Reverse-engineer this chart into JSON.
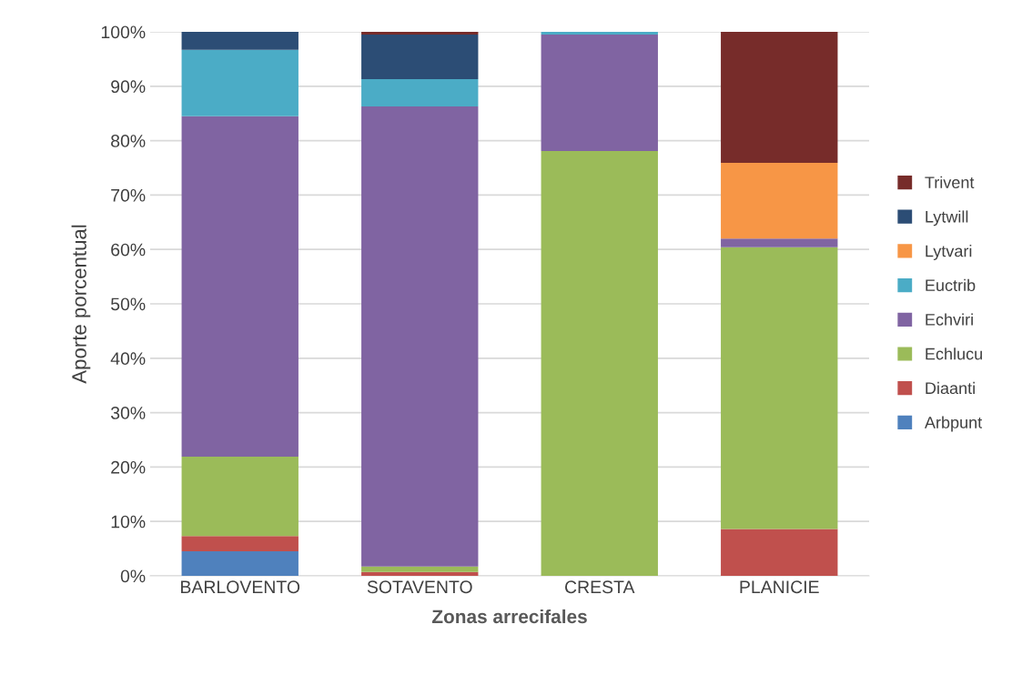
{
  "chart_data": {
    "type": "bar",
    "stacked": true,
    "xlabel": "Zonas arrecifales",
    "ylabel": "Aporte porcentual",
    "categories": [
      "BARLOVENTO",
      "SOTAVENTO",
      "CRESTA",
      "PLANICIE"
    ],
    "series": [
      {
        "name": "Arbpunt",
        "color": "#4f81bd",
        "values": [
          4.5,
          0,
          0,
          0
        ]
      },
      {
        "name": "Diaanti",
        "color": "#c0504d",
        "values": [
          2.8,
          0.7,
          0,
          8.6
        ]
      },
      {
        "name": "Echlucu",
        "color": "#9bbb59",
        "values": [
          14.6,
          1.0,
          78.1,
          51.8
        ]
      },
      {
        "name": "Echviri",
        "color": "#8064a2",
        "values": [
          62.6,
          84.6,
          21.4,
          1.6
        ]
      },
      {
        "name": "Euctrib",
        "color": "#4bacc6",
        "values": [
          12.2,
          5.0,
          0.5,
          0
        ]
      },
      {
        "name": "Lytvari",
        "color": "#f79646",
        "values": [
          0,
          0,
          0,
          13.9
        ]
      },
      {
        "name": "Lytwill",
        "color": "#2c4d75",
        "values": [
          3.3,
          8.2,
          0,
          0
        ]
      },
      {
        "name": "Trivent",
        "color": "#772c2a",
        "values": [
          0,
          0.5,
          0,
          24.1
        ]
      }
    ],
    "ylim": [
      0,
      100
    ],
    "yticks": [
      {
        "value": 0,
        "label": "0%"
      },
      {
        "value": 10,
        "label": "10%"
      },
      {
        "value": 20,
        "label": "20%"
      },
      {
        "value": 30,
        "label": "30%"
      },
      {
        "value": 40,
        "label": "40%"
      },
      {
        "value": 50,
        "label": "50%"
      },
      {
        "value": 60,
        "label": "60%"
      },
      {
        "value": 70,
        "label": "70%"
      },
      {
        "value": 80,
        "label": "80%"
      },
      {
        "value": 90,
        "label": "90%"
      },
      {
        "value": 100,
        "label": "100%"
      }
    ],
    "grid": "y",
    "legend": "right"
  }
}
